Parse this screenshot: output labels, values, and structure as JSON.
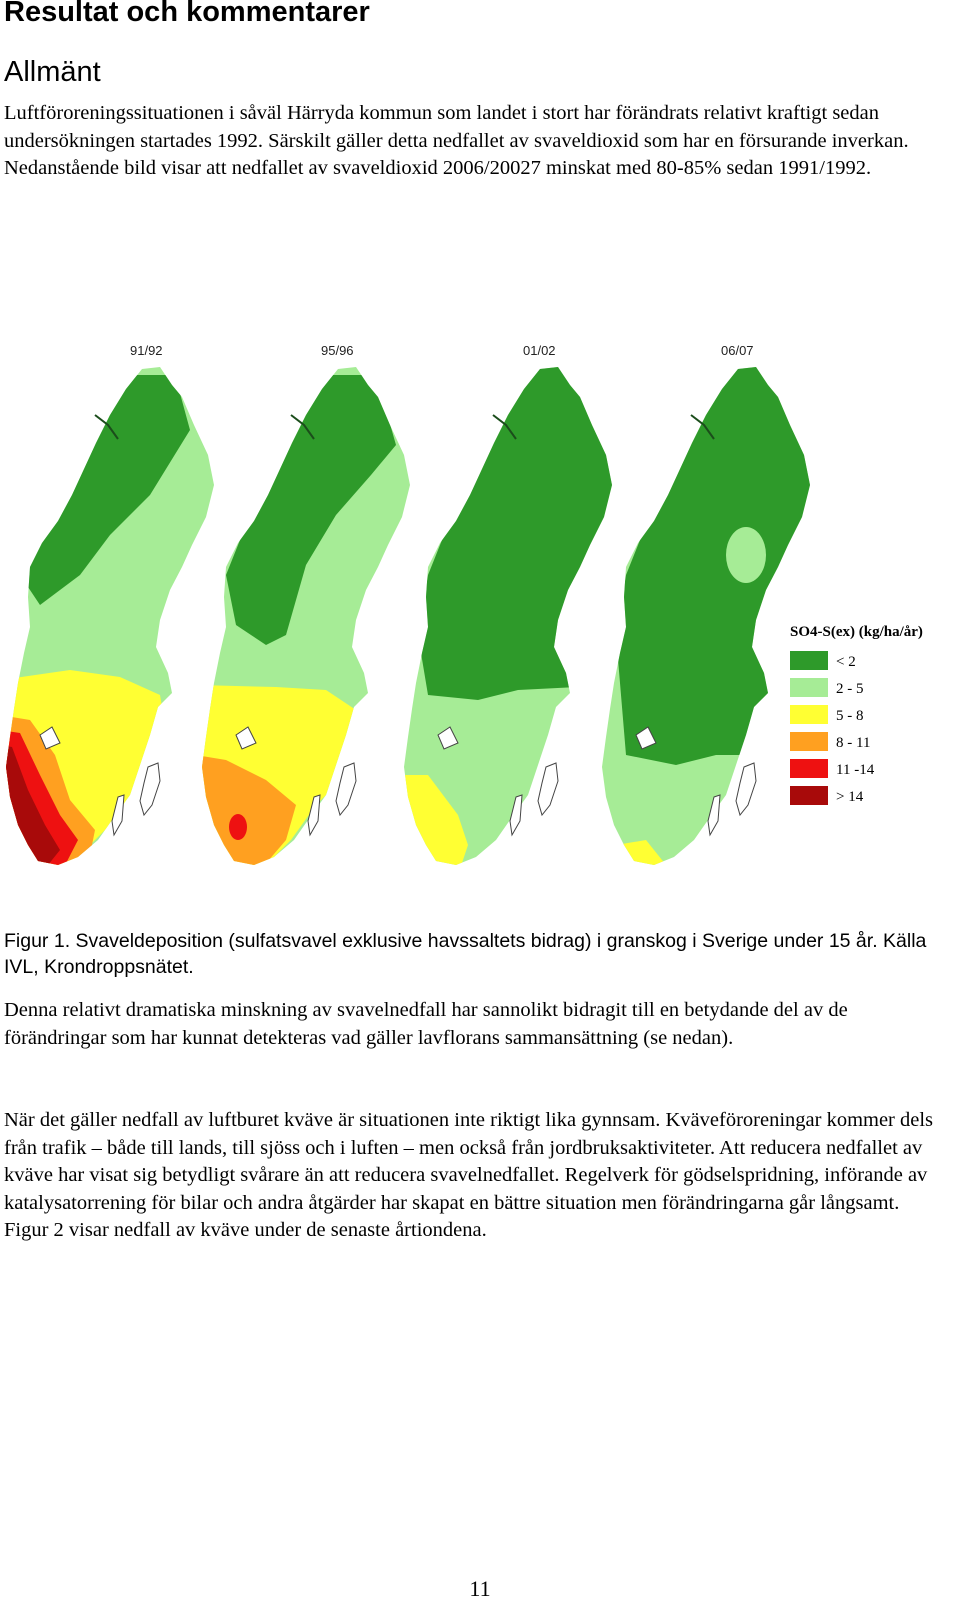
{
  "heading": "Resultat och kommentarer",
  "subheading": "Allmänt",
  "paragraph1": "Luftföroreningssituationen i såväl Härryda kommun som landet i stort har förändrats relativt kraftigt sedan undersökningen startades 1992. Särskilt gäller detta nedfallet av svaveldioxid som har en försurande inverkan. Nedanstående bild visar att nedfallet av svaveldioxid 2006/20027 minskat med 80-85% sedan 1991/1992.",
  "figure": {
    "maps": [
      {
        "label": "91/92"
      },
      {
        "label": "95/96"
      },
      {
        "label": "01/02"
      },
      {
        "label": "06/07"
      }
    ],
    "legend": {
      "title": "SO4-S(ex) (kg/ha/år)",
      "items": [
        {
          "label": "< 2",
          "color": "#2e9a2a"
        },
        {
          "label": "2 - 5",
          "color": "#a6ec96"
        },
        {
          "label": "5 - 8",
          "color": "#ffff33"
        },
        {
          "label": "8 - 11",
          "color": "#ffa020"
        },
        {
          "label": "11 -14",
          "color": "#ee1111"
        },
        {
          "label": "> 14",
          "color": "#a80a0a"
        }
      ]
    },
    "caption": "Figur 1. Svaveldeposition (sulfatsvavel exklusive havssaltets bidrag) i granskog i Sverige under 15 år. Källa IVL, Krondroppsnätet."
  },
  "paragraph2": "Denna relativt dramatiska minskning av svavelnedfall har sannolikt bidragit till en betydande del av de förändringar som har kunnat detekteras vad gäller lavflorans sammansättning (se nedan).",
  "paragraph3": "När det gäller nedfall av luftburet kväve är situationen inte riktigt lika gynnsam. Kväveföroreningar kommer dels från trafik – både till lands, till sjöss och i luften – men också från jordbruksaktiviteter. Att reducera nedfallet av kväve har visat sig betydligt svårare än att reducera svavelnedfallet. Regelverk för gödselspridning, införande av katalysatorrening för bilar och andra åtgärder har skapat en bättre situation men förändringarna går långsamt. Figur 2 visar nedfall av kväve under de senaste årtiondena.",
  "page_number": "11"
}
